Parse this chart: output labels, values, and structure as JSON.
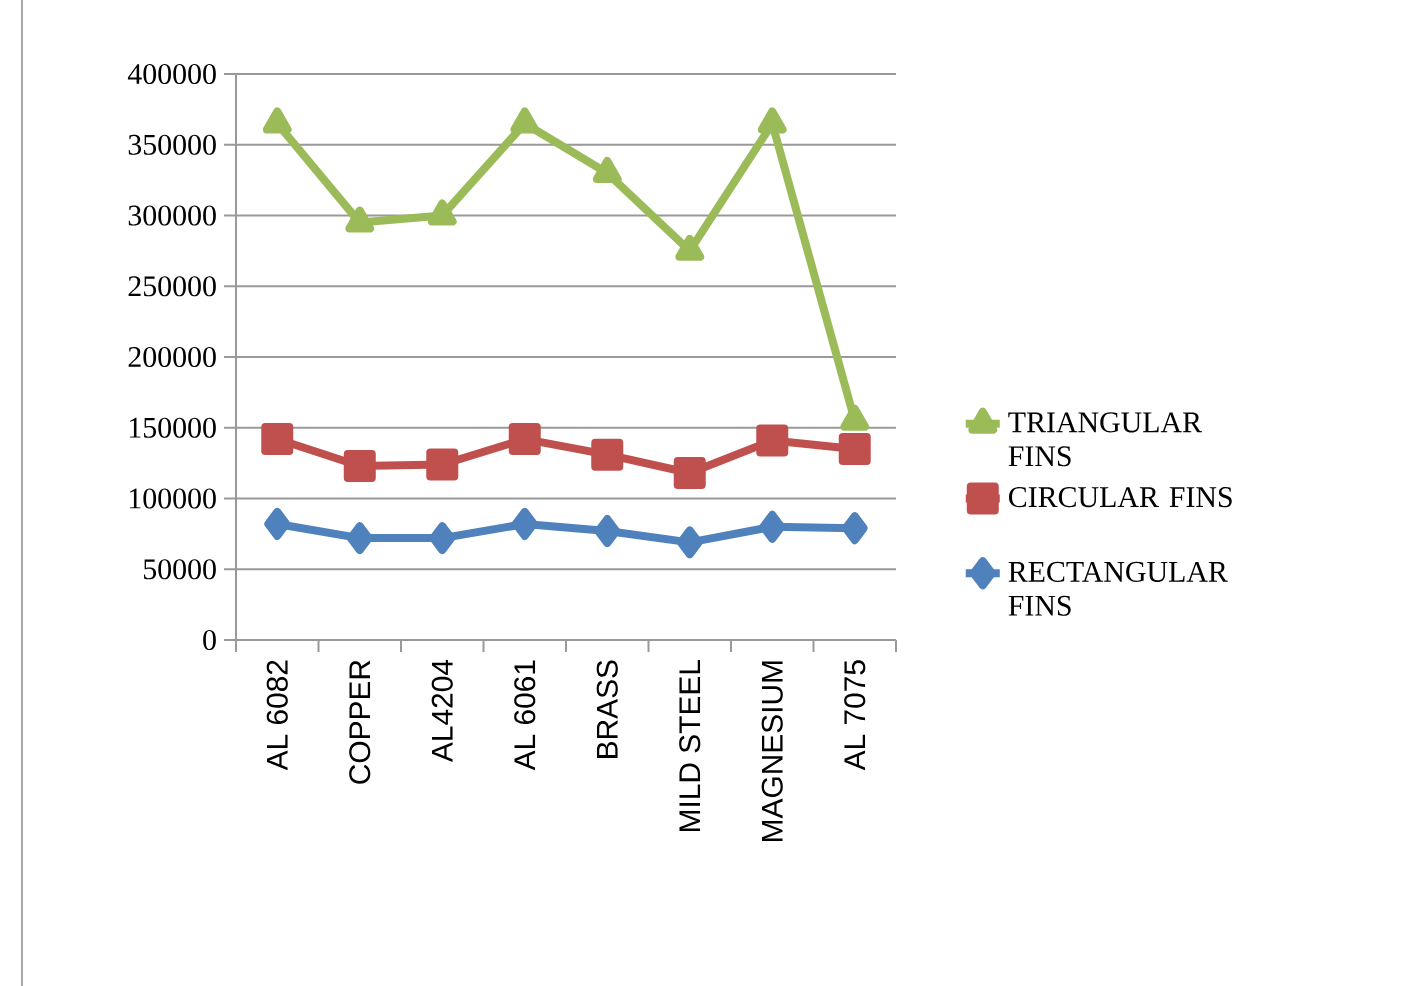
{
  "chart_data": {
    "type": "line",
    "categories": [
      "AL 6082",
      "COPPER",
      "AL4204",
      "AL 6061",
      "BRASS",
      "MILD STEEL",
      "MAGNESIUM",
      "AL 7075"
    ],
    "series": [
      {
        "name": "TRIANGULAR FINS",
        "color": "#9bbb59",
        "marker": "triangle",
        "values": [
          365000,
          295000,
          300000,
          365000,
          330000,
          275000,
          365000,
          155000
        ]
      },
      {
        "name": "CIRCULAR FINS",
        "color": "#c0504d",
        "marker": "square",
        "values": [
          142000,
          123000,
          124000,
          142000,
          131000,
          118000,
          141000,
          135000
        ]
      },
      {
        "name": "RECTANGULAR FINS",
        "color": "#4f81bd",
        "marker": "diamond",
        "values": [
          82000,
          72000,
          72000,
          82000,
          77000,
          69000,
          80000,
          79000
        ]
      }
    ],
    "ylim": [
      0,
      400000
    ],
    "yticks": [
      0,
      50000,
      100000,
      150000,
      200000,
      250000,
      300000,
      350000,
      400000
    ],
    "grid": "y",
    "legend": "right",
    "line_style": "solid"
  }
}
